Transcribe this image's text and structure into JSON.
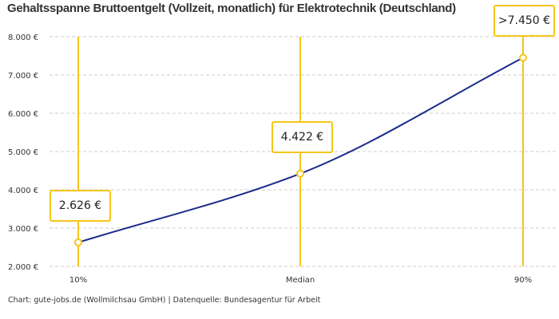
{
  "chart_data": {
    "type": "line",
    "title": "Gehaltsspanne Bruttoentgelt (Vollzeit, monatlich) für Elektrotechnik (Deutschland)",
    "categories": [
      "10%",
      "Median",
      "90%"
    ],
    "values": [
      2626,
      4422,
      7450
    ],
    "data_labels": [
      "2.626 €",
      "4.422 €",
      ">7.450 €"
    ],
    "ylim": [
      2000,
      8000
    ],
    "yticks": [
      2000,
      3000,
      4000,
      5000,
      6000,
      7000,
      8000
    ],
    "ytick_labels": [
      "2.000 €",
      "3.000 €",
      "4.000 €",
      "5.000 €",
      "6.000 €",
      "7.000 €",
      "8.000 €"
    ],
    "grid": true,
    "line_color": "#1a2a8c",
    "marker_color": "#f5c518"
  },
  "footer": "Chart: gute-jobs.de (Wollmilchsau GmbH) | Datenquelle: Bundesagentur für Arbeit"
}
